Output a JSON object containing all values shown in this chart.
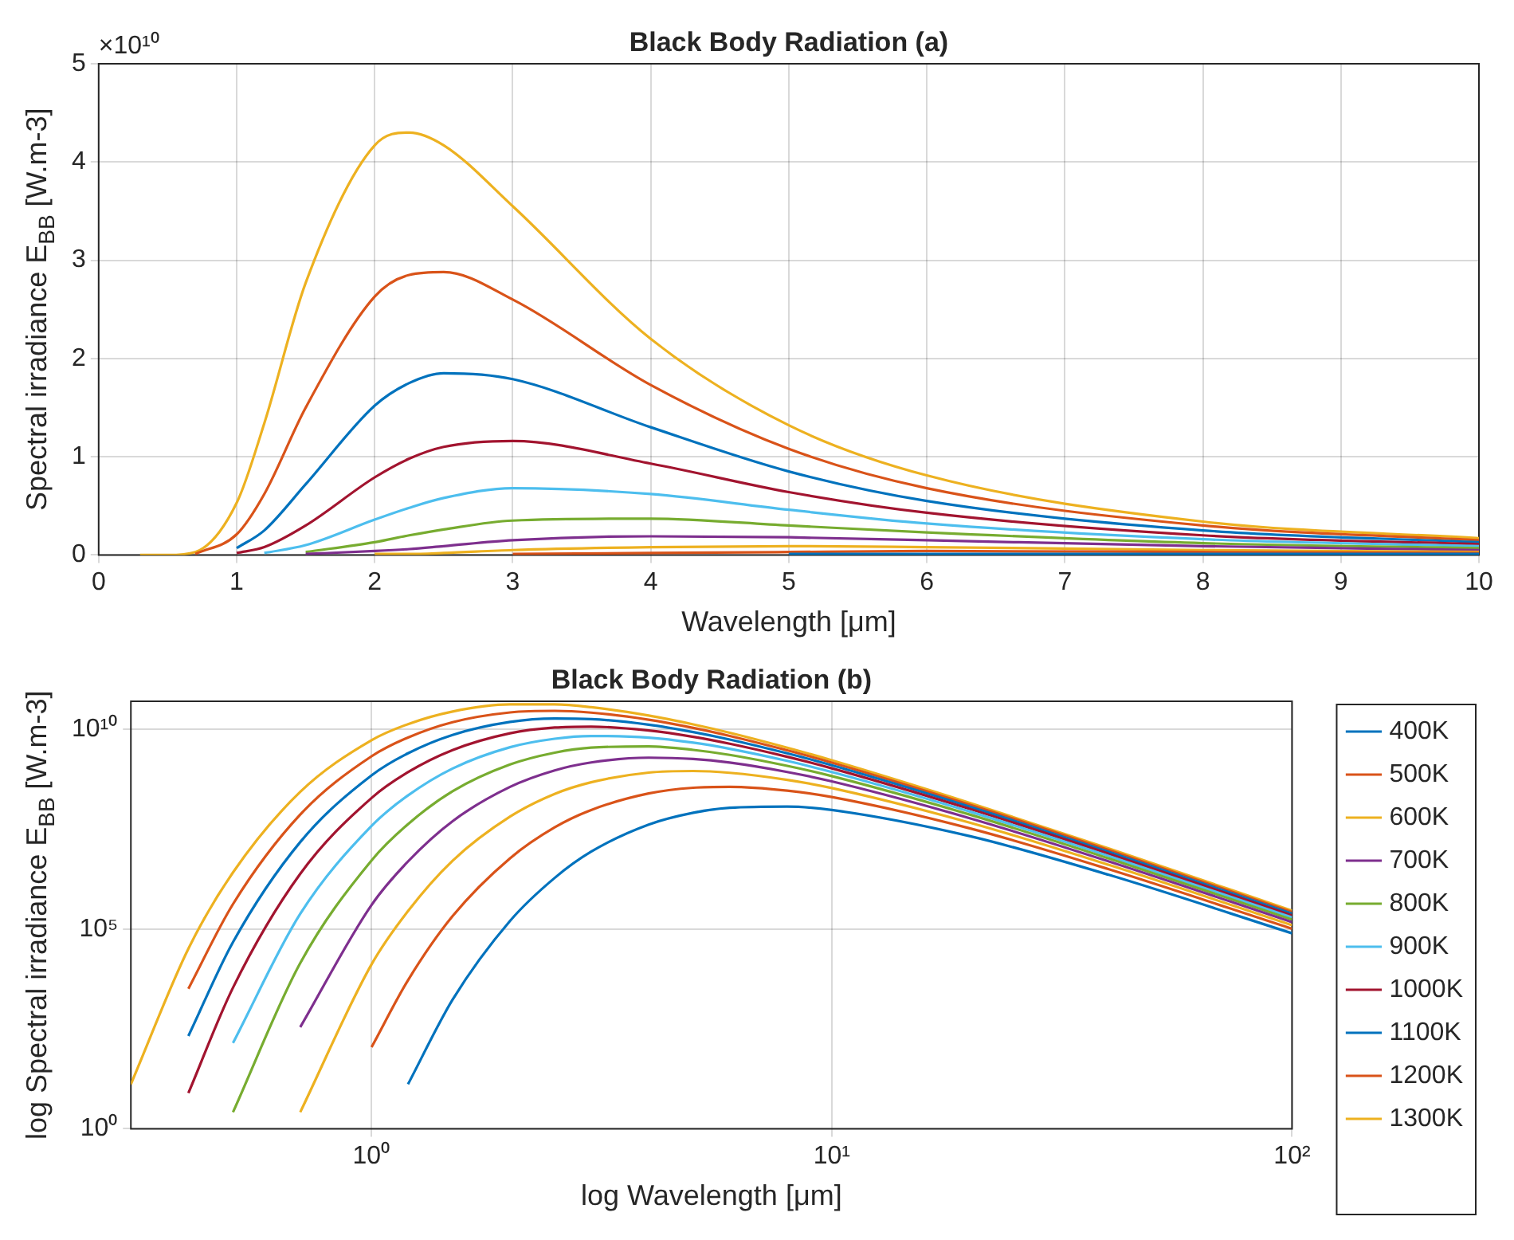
{
  "chart_data": [
    {
      "type": "line",
      "title": "Black Body Radiation (a)",
      "xlabel": "Wavelength [μm]",
      "ylabel": "Spectral irradiance E$_{BB}$ [W.m-3]",
      "annotations": [
        "×10¹⁰"
      ],
      "x": [
        0.3,
        0.4,
        0.5,
        0.7,
        1,
        1.2,
        1.5,
        2,
        2.25,
        2.5,
        3,
        4,
        5,
        6,
        8,
        10
      ],
      "xlim": [
        0,
        10
      ],
      "xticks": [
        0,
        1,
        2,
        3,
        4,
        5,
        6,
        7,
        8,
        9,
        10
      ],
      "ylim": [
        0,
        5
      ],
      "yticks": [
        0,
        1,
        2,
        3,
        4,
        5
      ],
      "grid": true,
      "legend": false,
      "series": [
        {
          "color": "#0072bd",
          "values": [
            null,
            null,
            null,
            null,
            null,
            null,
            null,
            null,
            null,
            null,
            null,
            null,
            0.01,
            0.01,
            0.01,
            0.01
          ]
        },
        {
          "color": "#d95319",
          "values": [
            null,
            null,
            null,
            null,
            null,
            null,
            null,
            null,
            null,
            null,
            0.01,
            0.02,
            0.03,
            0.04,
            0.03,
            0.02
          ]
        },
        {
          "color": "#edb120",
          "values": [
            null,
            null,
            null,
            null,
            null,
            null,
            null,
            0.01,
            0.01,
            0.02,
            0.05,
            0.08,
            0.09,
            0.08,
            0.05,
            0.03
          ]
        },
        {
          "color": "#7e2f8e",
          "values": [
            null,
            null,
            null,
            null,
            null,
            null,
            0.01,
            0.04,
            0.06,
            0.09,
            0.15,
            0.19,
            0.18,
            0.15,
            0.09,
            0.05
          ]
        },
        {
          "color": "#77ac30",
          "values": [
            null,
            null,
            null,
            null,
            null,
            null,
            0.03,
            0.13,
            0.2,
            0.26,
            0.35,
            0.37,
            0.3,
            0.23,
            0.12,
            0.07
          ]
        },
        {
          "color": "#4dbeee",
          "values": [
            null,
            null,
            null,
            null,
            null,
            0.02,
            0.1,
            0.36,
            0.48,
            0.58,
            0.68,
            0.62,
            0.46,
            0.32,
            0.16,
            0.09
          ]
        },
        {
          "color": "#a2142f",
          "values": [
            null,
            null,
            null,
            null,
            0.02,
            0.08,
            0.3,
            0.79,
            0.98,
            1.1,
            1.16,
            0.93,
            0.64,
            0.43,
            0.2,
            0.11
          ]
        },
        {
          "color": "#0072bd",
          "values": [
            null,
            null,
            null,
            null,
            0.07,
            0.25,
            0.72,
            1.52,
            1.75,
            1.85,
            1.79,
            1.3,
            0.85,
            0.55,
            0.25,
            0.13
          ]
        },
        {
          "color": "#d95319",
          "values": [
            null,
            null,
            null,
            0.01,
            0.21,
            0.62,
            1.5,
            2.63,
            2.85,
            2.88,
            2.6,
            1.73,
            1.08,
            0.68,
            0.3,
            0.15
          ]
        },
        {
          "color": "#edb120",
          "values": [
            0,
            0,
            0,
            0.03,
            0.53,
            1.34,
            2.77,
            4.17,
            4.3,
            4.17,
            3.55,
            2.2,
            1.32,
            0.81,
            0.34,
            0.17
          ]
        }
      ]
    },
    {
      "type": "line",
      "title": "Black Body Radiation (b)",
      "xlabel": "log Wavelength [μm]",
      "ylabel": "log Spectral irradiance E$_{BB}$ [W.m-3]",
      "x": [
        0.3,
        0.4,
        0.5,
        0.7,
        1,
        1.2,
        1.5,
        2,
        2.5,
        3,
        4,
        5,
        6,
        8,
        10,
        20,
        40,
        100
      ],
      "log": "xy",
      "xlim": [
        0.3,
        100
      ],
      "xticks": [
        {
          "value": 1,
          "label": "10⁰"
        },
        {
          "value": 10,
          "label": "10¹"
        },
        {
          "value": 100,
          "label": "10²"
        }
      ],
      "ylim": [
        1,
        50000000000.0
      ],
      "yticks": [
        {
          "value": 1,
          "label": "10⁰"
        },
        {
          "value": 100000,
          "label": "10⁵"
        },
        {
          "value": 10000000000.0,
          "label": "10¹⁰"
        }
      ],
      "grid": true,
      "legend": "right",
      "series": [
        {
          "name": "400K",
          "color": "#0072bd",
          "values": [
            null,
            null,
            null,
            null,
            null,
            13,
            1700.0,
            160000.0,
            1900000.0,
            8600000.0,
            41000000.0,
            81000000.0,
            108000000.0,
            116000000.0,
            95000000.0,
            20900000.0,
            2260000.0,
            78000.0
          ]
        },
        {
          "name": "500K",
          "color": "#d95319",
          "values": [
            null,
            null,
            null,
            null,
            110,
            5200.0,
            210000.0,
            5900000.0,
            35000000.0,
            95000000.0,
            247000000.0,
            343000000.0,
            361000000.0,
            290000000.0,
            201000000.0,
            32700000.0,
            3120000.0,
            101000.0
          ]
        },
        {
          "name": "600K",
          "color": "#edb120",
          "values": [
            null,
            null,
            null,
            2.6,
            13000.0,
            280000.0,
            5100000.0,
            65000000.0,
            240000000.0,
            470000000.0,
            820000000.0,
            899000000.0,
            810000000.0,
            540000000.0,
            337000000.0,
            45400000.0,
            4010000.0,
            124000.0
          ]
        },
        {
          "name": "700K",
          "color": "#7e2f8e",
          "values": [
            null,
            null,
            null,
            350,
            400000.0,
            4900000.0,
            50000000.0,
            360000000.0,
            930000000.0,
            1470000000.0,
            1940000000.0,
            1800000000.0,
            1460000000.0,
            850000000.0,
            495000000.0,
            58700000.0,
            4900000.0,
            148000.0
          ]
        },
        {
          "name": "800K",
          "color": "#77ac30",
          "values": [
            null,
            null,
            2.6,
            14000.0,
            5200000.0,
            42000000.0,
            280000000.0,
            1310000000.0,
            2590000000.0,
            3460000000.0,
            3710000000.0,
            3040000000.0,
            2280000000.0,
            1210000000.0,
            670000000.0,
            72200000.0,
            5800000.0,
            171000.0
          ]
        },
        {
          "name": "900K",
          "color": "#4dbeee",
          "values": [
            null,
            null,
            140,
            240000.0,
            38000000.0,
            220000000.0,
            1040000000.0,
            3550000000.0,
            5780000000.0,
            6760000000.0,
            6160000000.0,
            4600000000.0,
            3240000000.0,
            1610000000.0,
            850000000.0,
            86000000.0,
            6700000.0,
            194000.0
          ]
        },
        {
          "name": "1000K",
          "color": "#a2142f",
          "values": [
            null,
            7.8,
            3400.0,
            2400000.0,
            190000000.0,
            840000000.0,
            3000000000.0,
            7900000000.0,
            11000000000.0,
            11600000000.0,
            9270000000.0,
            6430000000.0,
            4330000000.0,
            2040000000.0,
            1050000000.0,
            100000000.0,
            7600000.0,
            218000.0
          ]
        },
        {
          "name": "1100K",
          "color": "#0072bd",
          "values": [
            null,
            210,
            47000.0,
            15000000.0,
            700000000.0,
            2500000000.0,
            7200000000.0,
            15200000000.0,
            18500000000.0,
            17900000000.0,
            13000000000.0,
            8510000000.0,
            5530000000.0,
            2490000000.0,
            1250000000.0,
            114000000.0,
            8510000.0,
            241000.0
          ]
        },
        {
          "name": "1200K",
          "color": "#d95319",
          "values": [
            null,
            3200.0,
            420000.0,
            73000000.0,
            2100000000.0,
            6200000000.0,
            15000000000.0,
            26300000000.0,
            28800000000.0,
            26000000000.0,
            17300000000.0,
            10800000000.0,
            6800000000.0,
            2960000000.0,
            1460000000.0,
            128000000.0,
            9410000.0,
            265000.0
          ]
        },
        {
          "name": "1300K",
          "color": "#edb120",
          "values": [
            13,
            32000.0,
            2600000.0,
            270000000.0,
            5300000000.0,
            13400000000.0,
            27700000000.0,
            41700000000.0,
            41700000000.0,
            35500000000.0,
            22000000000.0,
            13200000000.0,
            8140000000.0,
            3440000000.0,
            1670000000.0,
            142000000.0,
            10300000.0,
            288000.0
          ]
        }
      ]
    }
  ]
}
